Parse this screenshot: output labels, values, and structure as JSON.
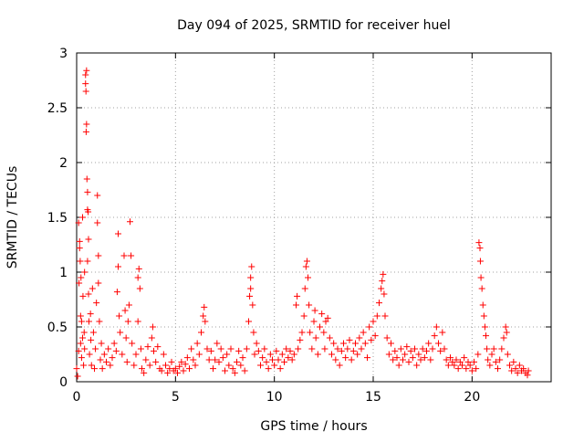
{
  "chart_data": {
    "type": "scatter",
    "title": "Day 094 of 2025, SRMTID for receiver huel",
    "xlabel": "GPS time / hours",
    "ylabel": "SRMTID / TECUs",
    "xlim": [
      0,
      24
    ],
    "ylim": [
      0,
      3
    ],
    "x_ticks": [
      0,
      5,
      10,
      15,
      20
    ],
    "x_tick_labels": [
      "0",
      "5",
      "10",
      "15",
      "20"
    ],
    "y_ticks": [
      0,
      0.5,
      1,
      1.5,
      2,
      2.5,
      3
    ],
    "y_tick_labels": [
      "0",
      "0.5",
      "1",
      "1.5",
      "2",
      "2.5",
      "3"
    ],
    "grid": true,
    "marker": "+",
    "color": "#ff0000",
    "series": [
      {
        "name": "SRMTID",
        "points": [
          [
            0.0,
            0.12
          ],
          [
            0.05,
            0.05
          ],
          [
            0.1,
            0.28
          ],
          [
            0.1,
            1.45
          ],
          [
            0.12,
            0.9
          ],
          [
            0.15,
            1.28
          ],
          [
            0.15,
            1.22
          ],
          [
            0.18,
            1.1
          ],
          [
            0.2,
            0.6
          ],
          [
            0.2,
            0.35
          ],
          [
            0.22,
            0.95
          ],
          [
            0.25,
            0.55
          ],
          [
            0.25,
            0.22
          ],
          [
            0.3,
            0.4
          ],
          [
            0.3,
            1.5
          ],
          [
            0.32,
            0.78
          ],
          [
            0.35,
            0.15
          ],
          [
            0.38,
            0.45
          ],
          [
            0.4,
            1.0
          ],
          [
            0.4,
            0.3
          ],
          [
            0.45,
            2.8
          ],
          [
            0.45,
            2.72
          ],
          [
            0.47,
            2.65
          ],
          [
            0.5,
            2.84
          ],
          [
            0.5,
            2.35
          ],
          [
            0.48,
            2.28
          ],
          [
            0.52,
            1.85
          ],
          [
            0.55,
            1.73
          ],
          [
            0.55,
            1.57
          ],
          [
            0.58,
            1.55
          ],
          [
            0.55,
            1.1
          ],
          [
            0.6,
            1.3
          ],
          [
            0.6,
            0.8
          ],
          [
            0.62,
            0.55
          ],
          [
            0.65,
            0.25
          ],
          [
            0.7,
            0.62
          ],
          [
            0.72,
            0.38
          ],
          [
            0.75,
            0.15
          ],
          [
            0.8,
            0.85
          ],
          [
            0.85,
            0.45
          ],
          [
            0.9,
            0.12
          ],
          [
            0.95,
            0.3
          ],
          [
            1.0,
            0.72
          ],
          [
            1.05,
            1.7
          ],
          [
            1.05,
            1.45
          ],
          [
            1.1,
            1.15
          ],
          [
            1.1,
            0.9
          ],
          [
            1.15,
            0.55
          ],
          [
            1.2,
            0.2
          ],
          [
            1.25,
            0.35
          ],
          [
            1.3,
            0.12
          ],
          [
            1.4,
            0.25
          ],
          [
            1.5,
            0.18
          ],
          [
            1.6,
            0.3
          ],
          [
            1.7,
            0.15
          ],
          [
            1.8,
            0.22
          ],
          [
            1.9,
            0.35
          ],
          [
            2.0,
            0.28
          ],
          [
            2.05,
            0.82
          ],
          [
            2.1,
            1.05
          ],
          [
            2.1,
            1.35
          ],
          [
            2.15,
            0.6
          ],
          [
            2.2,
            0.45
          ],
          [
            2.3,
            0.25
          ],
          [
            2.4,
            1.15
          ],
          [
            2.45,
            0.65
          ],
          [
            2.5,
            0.4
          ],
          [
            2.55,
            0.18
          ],
          [
            2.6,
            0.55
          ],
          [
            2.65,
            0.7
          ],
          [
            2.7,
            1.46
          ],
          [
            2.75,
            1.15
          ],
          [
            2.8,
            0.35
          ],
          [
            2.9,
            0.15
          ],
          [
            3.0,
            0.25
          ],
          [
            3.1,
            0.55
          ],
          [
            3.1,
            0.95
          ],
          [
            3.15,
            1.03
          ],
          [
            3.2,
            0.85
          ],
          [
            3.25,
            0.3
          ],
          [
            3.3,
            0.12
          ],
          [
            3.4,
            0.08
          ],
          [
            3.5,
            0.2
          ],
          [
            3.6,
            0.32
          ],
          [
            3.7,
            0.15
          ],
          [
            3.8,
            0.4
          ],
          [
            3.85,
            0.5
          ],
          [
            3.9,
            0.28
          ],
          [
            4.0,
            0.18
          ],
          [
            4.1,
            0.32
          ],
          [
            4.2,
            0.12
          ],
          [
            4.3,
            0.1
          ],
          [
            4.4,
            0.25
          ],
          [
            4.5,
            0.15
          ],
          [
            4.6,
            0.08
          ],
          [
            4.7,
            0.12
          ],
          [
            4.8,
            0.18
          ],
          [
            4.9,
            0.1
          ],
          [
            5.0,
            0.12
          ],
          [
            5.1,
            0.08
          ],
          [
            5.2,
            0.14
          ],
          [
            5.3,
            0.18
          ],
          [
            5.4,
            0.1
          ],
          [
            5.5,
            0.16
          ],
          [
            5.6,
            0.22
          ],
          [
            5.7,
            0.12
          ],
          [
            5.8,
            0.3
          ],
          [
            5.9,
            0.2
          ],
          [
            6.0,
            0.15
          ],
          [
            6.1,
            0.35
          ],
          [
            6.2,
            0.25
          ],
          [
            6.3,
            0.45
          ],
          [
            6.4,
            0.6
          ],
          [
            6.45,
            0.68
          ],
          [
            6.5,
            0.55
          ],
          [
            6.6,
            0.3
          ],
          [
            6.7,
            0.2
          ],
          [
            6.8,
            0.28
          ],
          [
            6.9,
            0.12
          ],
          [
            7.0,
            0.2
          ],
          [
            7.1,
            0.35
          ],
          [
            7.2,
            0.18
          ],
          [
            7.3,
            0.3
          ],
          [
            7.4,
            0.22
          ],
          [
            7.5,
            0.1
          ],
          [
            7.6,
            0.25
          ],
          [
            7.7,
            0.15
          ],
          [
            7.8,
            0.3
          ],
          [
            7.9,
            0.12
          ],
          [
            8.0,
            0.08
          ],
          [
            8.1,
            0.18
          ],
          [
            8.2,
            0.28
          ],
          [
            8.3,
            0.15
          ],
          [
            8.4,
            0.22
          ],
          [
            8.5,
            0.1
          ],
          [
            8.6,
            0.3
          ],
          [
            8.7,
            0.55
          ],
          [
            8.75,
            0.78
          ],
          [
            8.8,
            0.95
          ],
          [
            8.85,
            1.05
          ],
          [
            8.8,
            0.85
          ],
          [
            8.9,
            0.7
          ],
          [
            8.95,
            0.45
          ],
          [
            9.0,
            0.25
          ],
          [
            9.1,
            0.35
          ],
          [
            9.2,
            0.28
          ],
          [
            9.3,
            0.15
          ],
          [
            9.4,
            0.22
          ],
          [
            9.5,
            0.3
          ],
          [
            9.6,
            0.18
          ],
          [
            9.7,
            0.12
          ],
          [
            9.8,
            0.25
          ],
          [
            9.9,
            0.2
          ],
          [
            10.0,
            0.15
          ],
          [
            10.1,
            0.28
          ],
          [
            10.2,
            0.2
          ],
          [
            10.3,
            0.12
          ],
          [
            10.4,
            0.25
          ],
          [
            10.5,
            0.18
          ],
          [
            10.6,
            0.3
          ],
          [
            10.7,
            0.22
          ],
          [
            10.8,
            0.28
          ],
          [
            10.9,
            0.2
          ],
          [
            11.0,
            0.25
          ],
          [
            11.1,
            0.7
          ],
          [
            11.15,
            0.78
          ],
          [
            11.2,
            0.3
          ],
          [
            11.3,
            0.38
          ],
          [
            11.4,
            0.45
          ],
          [
            11.5,
            0.6
          ],
          [
            11.55,
            0.85
          ],
          [
            11.6,
            1.05
          ],
          [
            11.65,
            1.1
          ],
          [
            11.7,
            0.95
          ],
          [
            11.75,
            0.7
          ],
          [
            11.8,
            0.45
          ],
          [
            11.9,
            0.3
          ],
          [
            12.0,
            0.55
          ],
          [
            12.05,
            0.65
          ],
          [
            12.1,
            0.4
          ],
          [
            12.2,
            0.25
          ],
          [
            12.3,
            0.5
          ],
          [
            12.4,
            0.62
          ],
          [
            12.5,
            0.45
          ],
          [
            12.55,
            0.3
          ],
          [
            12.6,
            0.55
          ],
          [
            12.7,
            0.58
          ],
          [
            12.8,
            0.4
          ],
          [
            12.9,
            0.25
          ],
          [
            13.0,
            0.35
          ],
          [
            13.1,
            0.2
          ],
          [
            13.2,
            0.3
          ],
          [
            13.3,
            0.15
          ],
          [
            13.4,
            0.28
          ],
          [
            13.5,
            0.35
          ],
          [
            13.6,
            0.22
          ],
          [
            13.7,
            0.3
          ],
          [
            13.8,
            0.38
          ],
          [
            13.9,
            0.2
          ],
          [
            14.0,
            0.28
          ],
          [
            14.1,
            0.35
          ],
          [
            14.2,
            0.25
          ],
          [
            14.3,
            0.4
          ],
          [
            14.4,
            0.3
          ],
          [
            14.5,
            0.45
          ],
          [
            14.6,
            0.35
          ],
          [
            14.7,
            0.22
          ],
          [
            14.8,
            0.5
          ],
          [
            14.9,
            0.38
          ],
          [
            15.0,
            0.55
          ],
          [
            15.1,
            0.42
          ],
          [
            15.2,
            0.6
          ],
          [
            15.3,
            0.72
          ],
          [
            15.4,
            0.85
          ],
          [
            15.45,
            0.92
          ],
          [
            15.5,
            0.98
          ],
          [
            15.55,
            0.8
          ],
          [
            15.6,
            0.6
          ],
          [
            15.7,
            0.4
          ],
          [
            15.8,
            0.25
          ],
          [
            15.9,
            0.35
          ],
          [
            16.0,
            0.2
          ],
          [
            16.1,
            0.28
          ],
          [
            16.2,
            0.22
          ],
          [
            16.3,
            0.15
          ],
          [
            16.4,
            0.3
          ],
          [
            16.5,
            0.2
          ],
          [
            16.6,
            0.25
          ],
          [
            16.7,
            0.32
          ],
          [
            16.8,
            0.18
          ],
          [
            16.9,
            0.28
          ],
          [
            17.0,
            0.22
          ],
          [
            17.1,
            0.3
          ],
          [
            17.2,
            0.15
          ],
          [
            17.3,
            0.25
          ],
          [
            17.4,
            0.2
          ],
          [
            17.5,
            0.3
          ],
          [
            17.6,
            0.22
          ],
          [
            17.7,
            0.28
          ],
          [
            17.8,
            0.35
          ],
          [
            17.9,
            0.2
          ],
          [
            18.0,
            0.3
          ],
          [
            18.1,
            0.42
          ],
          [
            18.2,
            0.5
          ],
          [
            18.3,
            0.35
          ],
          [
            18.4,
            0.28
          ],
          [
            18.5,
            0.45
          ],
          [
            18.6,
            0.3
          ],
          [
            18.7,
            0.2
          ],
          [
            18.8,
            0.15
          ],
          [
            18.9,
            0.22
          ],
          [
            19.0,
            0.18
          ],
          [
            19.1,
            0.15
          ],
          [
            19.2,
            0.2
          ],
          [
            19.3,
            0.12
          ],
          [
            19.4,
            0.18
          ],
          [
            19.5,
            0.15
          ],
          [
            19.6,
            0.22
          ],
          [
            19.7,
            0.12
          ],
          [
            19.8,
            0.18
          ],
          [
            19.9,
            0.15
          ],
          [
            20.0,
            0.1
          ],
          [
            20.1,
            0.18
          ],
          [
            20.2,
            0.12
          ],
          [
            20.3,
            0.25
          ],
          [
            20.35,
            1.27
          ],
          [
            20.4,
            1.22
          ],
          [
            20.42,
            1.1
          ],
          [
            20.45,
            0.95
          ],
          [
            20.5,
            0.85
          ],
          [
            20.55,
            0.7
          ],
          [
            20.6,
            0.6
          ],
          [
            20.65,
            0.5
          ],
          [
            20.7,
            0.42
          ],
          [
            20.75,
            0.3
          ],
          [
            20.8,
            0.2
          ],
          [
            20.9,
            0.15
          ],
          [
            21.0,
            0.25
          ],
          [
            21.1,
            0.3
          ],
          [
            21.2,
            0.18
          ],
          [
            21.3,
            0.12
          ],
          [
            21.4,
            0.2
          ],
          [
            21.5,
            0.3
          ],
          [
            21.6,
            0.4
          ],
          [
            21.7,
            0.5
          ],
          [
            21.75,
            0.45
          ],
          [
            21.8,
            0.25
          ],
          [
            21.9,
            0.15
          ],
          [
            22.0,
            0.1
          ],
          [
            22.1,
            0.18
          ],
          [
            22.2,
            0.12
          ],
          [
            22.3,
            0.08
          ],
          [
            22.4,
            0.15
          ],
          [
            22.5,
            0.1
          ],
          [
            22.6,
            0.12
          ],
          [
            22.7,
            0.08
          ],
          [
            22.8,
            0.06
          ],
          [
            22.85,
            0.1
          ]
        ]
      }
    ]
  }
}
